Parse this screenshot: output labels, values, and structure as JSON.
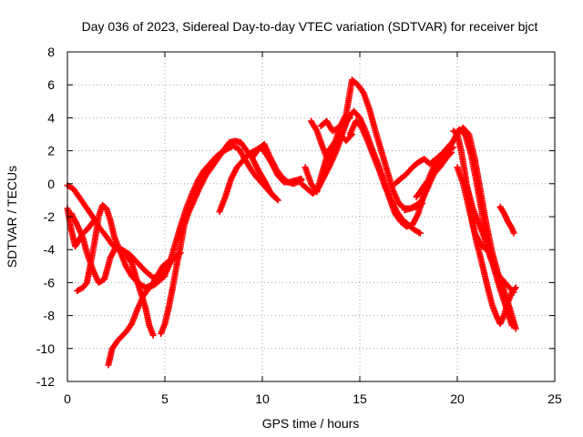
{
  "chart_data": {
    "type": "scatter",
    "title": "Day 036 of 2023, Sidereal Day-to-day VTEC variation (SDTVAR) for receiver bjct",
    "xlabel": "GPS time / hours",
    "ylabel": "SDTVAR / TECUs",
    "xlim": [
      0,
      25
    ],
    "ylim": [
      -12,
      8
    ],
    "xticks": [
      0,
      5,
      10,
      15,
      20,
      25
    ],
    "yticks": [
      -12,
      -10,
      -8,
      -6,
      -4,
      -2,
      0,
      2,
      4,
      6,
      8
    ],
    "grid": true,
    "legend": "none",
    "marker": "plus",
    "color": "#ff0000",
    "series": [
      {
        "x": [
          0.0,
          0.3,
          0.6,
          1.0,
          1.3,
          1.6,
          2.0,
          2.3,
          2.6,
          3.0,
          3.3,
          3.6,
          4.0,
          4.2,
          4.4
        ],
        "y": [
          -0.1,
          -0.3,
          -0.8,
          -1.5,
          -2.0,
          -2.6,
          -3.2,
          -3.7,
          -4.0,
          -4.3,
          -4.8,
          -6.0,
          -7.5,
          -8.6,
          -9.2
        ]
      },
      {
        "x": [
          0.0,
          0.2,
          0.4,
          0.6,
          0.8,
          1.0,
          1.2,
          1.4
        ],
        "y": [
          -1.5,
          -2.8,
          -3.8,
          -3.4,
          -3.0,
          -2.8,
          -2.5,
          -2.2
        ]
      },
      {
        "x": [
          0.2,
          0.5,
          0.8,
          1.0,
          1.3,
          1.6,
          1.9,
          2.2,
          2.5,
          2.8,
          3.2,
          3.6,
          4.0,
          4.4,
          4.8,
          5.2,
          5.5,
          5.8
        ],
        "y": [
          -1.8,
          -2.5,
          -3.3,
          -4.2,
          -5.2,
          -6.0,
          -5.8,
          -4.5,
          -3.8,
          -4.0,
          -4.3,
          -4.8,
          -5.3,
          -5.7,
          -5.6,
          -4.8,
          -4.5,
          -4.2
        ]
      },
      {
        "x": [
          0.5,
          0.8,
          1.0,
          1.2,
          1.4,
          1.6,
          1.8,
          2.0,
          2.2,
          2.4,
          2.6,
          2.8,
          3.0,
          3.3,
          3.6,
          4.0,
          4.3,
          4.6,
          4.9,
          5.2,
          5.4
        ],
        "y": [
          -6.5,
          -6.3,
          -6.0,
          -4.8,
          -3.5,
          -2.0,
          -1.3,
          -1.5,
          -2.2,
          -3.2,
          -3.8,
          -4.4,
          -5.0,
          -5.6,
          -6.0,
          -6.3,
          -6.2,
          -5.6,
          -5.0,
          -4.7,
          -4.7
        ]
      },
      {
        "x": [
          2.1,
          2.3,
          2.6,
          3.0,
          3.3,
          3.6,
          3.9,
          4.2,
          4.5,
          4.8,
          5.0
        ],
        "y": [
          -11.0,
          -10.0,
          -9.5,
          -9.0,
          -8.5,
          -7.6,
          -6.8,
          -6.3,
          -6.1,
          -5.8,
          -5.6
        ]
      },
      {
        "x": [
          4.8,
          5.0,
          5.2,
          5.4,
          5.6,
          5.8,
          6.0,
          6.2,
          6.5,
          6.8,
          7.1,
          7.4,
          7.7,
          8.0,
          8.3,
          8.6,
          8.9,
          9.2,
          9.5,
          9.8,
          10.1,
          10.4,
          10.8
        ],
        "y": [
          -9.1,
          -8.5,
          -7.5,
          -6.3,
          -5.0,
          -3.8,
          -2.5,
          -1.8,
          -1.0,
          -0.2,
          0.5,
          1.0,
          1.5,
          2.0,
          2.5,
          2.6,
          2.5,
          2.0,
          1.5,
          0.8,
          0.2,
          -0.5,
          -1.0
        ]
      },
      {
        "x": [
          5.0,
          5.2,
          5.5,
          5.8,
          6.1,
          6.4,
          6.7,
          7.0,
          7.3,
          7.6,
          7.9,
          8.2,
          8.5,
          8.8,
          9.1,
          9.4,
          9.7,
          10.0,
          10.3,
          10.6
        ],
        "y": [
          -5.5,
          -5.0,
          -3.8,
          -2.6,
          -1.5,
          -0.6,
          0.2,
          0.8,
          1.2,
          1.6,
          1.9,
          2.1,
          2.3,
          2.1,
          1.5,
          0.9,
          0.4,
          0.0,
          -0.4,
          -0.8
        ]
      },
      {
        "x": [
          7.8,
          8.1,
          8.4,
          8.7,
          9.0,
          9.3,
          9.6,
          9.9,
          10.2,
          10.5,
          10.8,
          11.1,
          11.4,
          11.7,
          12.0
        ],
        "y": [
          -1.7,
          -0.8,
          0.3,
          1.0,
          1.4,
          1.8,
          2.0,
          2.2,
          1.8,
          1.2,
          0.5,
          0.1,
          0.1,
          0.2,
          0.3
        ]
      },
      {
        "x": [
          9.5,
          9.8,
          10.1,
          10.4,
          10.7,
          11.0,
          11.3,
          11.6,
          12.0
        ],
        "y": [
          1.6,
          2.1,
          2.4,
          1.6,
          0.9,
          0.4,
          0.1,
          0.0,
          0.2
        ]
      },
      {
        "x": [
          12.0,
          12.3,
          12.6,
          12.9,
          13.2,
          13.5,
          13.8,
          14.1,
          14.4,
          14.7,
          15.0,
          15.3,
          15.6,
          15.9,
          16.2,
          16.5,
          16.8,
          17.1,
          17.4,
          17.7,
          18.0,
          18.3,
          18.6,
          18.9,
          19.2,
          19.5,
          19.8,
          20.1,
          20.4,
          20.7,
          21.0,
          21.3,
          21.6,
          21.9,
          22.2,
          22.5,
          22.8
        ],
        "y": [
          0.0,
          -0.3,
          -0.6,
          -0.2,
          0.5,
          1.2,
          2.0,
          3.0,
          4.0,
          4.4,
          4.0,
          3.2,
          2.2,
          1.3,
          0.3,
          -0.8,
          -1.8,
          -2.3,
          -2.6,
          -2.5,
          -1.8,
          -0.6,
          0.5,
          1.3,
          1.8,
          2.2,
          2.6,
          3.3,
          3.0,
          1.8,
          0.0,
          -2.0,
          -3.8,
          -5.2,
          -6.4,
          -7.5,
          -8.6
        ]
      },
      {
        "x": [
          12.5,
          12.8,
          13.1,
          13.4,
          13.7,
          14.0,
          14.3,
          14.6,
          14.9,
          15.2,
          15.5,
          15.8,
          16.1,
          16.4,
          16.7,
          17.0,
          17.3,
          17.6,
          17.9,
          18.2
        ],
        "y": [
          3.8,
          3.2,
          2.2,
          1.3,
          2.4,
          3.5,
          4.2,
          6.3,
          6.0,
          5.5,
          4.5,
          3.2,
          2.0,
          0.8,
          -0.4,
          -1.2,
          -1.5,
          -1.5,
          -1.4,
          -1.2
        ]
      },
      {
        "x": [
          14.5,
          14.8,
          15.1,
          15.4,
          15.7,
          16.0,
          16.3,
          16.6,
          16.9,
          17.2,
          17.5,
          17.8,
          18.1
        ],
        "y": [
          3.0,
          3.8,
          3.4,
          2.6,
          1.7,
          0.8,
          -0.2,
          -1.0,
          -1.7,
          -2.2,
          -2.5,
          -2.8,
          -3.0
        ]
      },
      {
        "x": [
          12.2,
          12.5,
          12.8,
          13.1,
          13.4,
          13.7,
          14.0,
          14.3,
          14.6
        ],
        "y": [
          1.0,
          0.0,
          -0.5,
          0.8,
          2.0,
          2.5,
          3.0,
          2.6,
          3.0
        ]
      },
      {
        "x": [
          13.0,
          13.3,
          13.6,
          13.9,
          14.2,
          14.5
        ],
        "y": [
          3.5,
          3.8,
          3.2,
          3.4,
          3.8,
          4.0
        ]
      },
      {
        "x": [
          17.3,
          17.6,
          17.9,
          18.2,
          18.5,
          18.8,
          19.1,
          19.4,
          19.7,
          20.0,
          20.3,
          20.6,
          20.9,
          21.2,
          21.5,
          21.8,
          22.1,
          22.4,
          22.7,
          23.0
        ],
        "y": [
          -1.6,
          -1.5,
          -1.3,
          -1.0,
          -0.2,
          0.6,
          1.2,
          1.8,
          2.4,
          3.0,
          3.4,
          3.0,
          1.5,
          -0.5,
          -2.5,
          -4.2,
          -5.5,
          -6.5,
          -7.6,
          -8.8
        ]
      },
      {
        "x": [
          17.9,
          18.2,
          18.5,
          18.8,
          19.1,
          19.4,
          19.7
        ],
        "y": [
          -0.8,
          -0.3,
          0.2,
          0.6,
          1.0,
          1.5,
          1.9
        ]
      },
      {
        "x": [
          19.8,
          20.0,
          20.2,
          20.4,
          20.6,
          20.8,
          21.0,
          21.2,
          21.4,
          21.6,
          21.8,
          22.0,
          22.2,
          22.4,
          22.6,
          22.8,
          23.0
        ],
        "y": [
          3.2,
          3.0,
          2.0,
          0.6,
          -1.0,
          -2.5,
          -3.6,
          -4.5,
          -5.5,
          -6.5,
          -7.4,
          -8.0,
          -8.5,
          -8.0,
          -7.2,
          -6.6,
          -6.3
        ]
      },
      {
        "x": [
          20.0,
          20.3,
          20.6,
          20.9,
          21.2,
          21.5
        ],
        "y": [
          1.0,
          0.0,
          -1.5,
          -3.0,
          -3.7,
          -4.0
        ]
      },
      {
        "x": [
          20.5,
          20.8,
          21.1,
          21.4,
          21.7,
          22.0,
          22.3,
          22.6,
          22.9
        ],
        "y": [
          -0.2,
          -1.5,
          -2.4,
          -3.3,
          -4.5,
          -5.4,
          -5.8,
          -6.2,
          -6.6
        ]
      },
      {
        "x": [
          22.2,
          22.4,
          22.6,
          22.8,
          22.9
        ],
        "y": [
          -1.4,
          -1.8,
          -2.3,
          -2.7,
          -3.0
        ]
      },
      {
        "x": [
          16.8,
          17.1,
          17.4,
          17.7,
          18.0,
          18.3,
          18.6,
          19.0,
          19.4,
          19.8
        ],
        "y": [
          0.0,
          0.3,
          0.6,
          1.0,
          1.3,
          1.5,
          1.2,
          1.6,
          2.0,
          2.2
        ]
      }
    ]
  }
}
